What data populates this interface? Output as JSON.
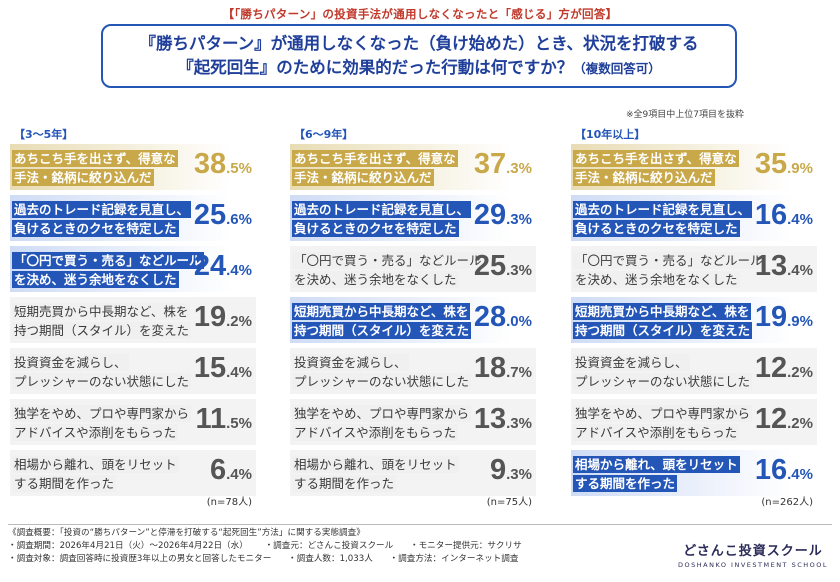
{
  "header": {
    "top_heading": "【「勝ちパターン」の投資手法が通用しなくなったと「感じる」方が回答】",
    "question_line1": "『勝ちパターン』が通用しなくなった（負け始めた）とき、状況を打破する",
    "question_line2_main": "『起死回生』のために効果的だった行動は何ですか？",
    "question_line2_small": "（複数回答可）",
    "note": "※全9項目中上位7項目を抜粋"
  },
  "columns": [
    {
      "title": "【3～5年】",
      "n": "(n=78人)",
      "items": [
        {
          "line1": "あちこち手を出さず、得意な",
          "line2": "手法・銘柄に絞り込んだ",
          "value": "38",
          "decimal": ".5%",
          "style": "gold"
        },
        {
          "line1": "過去のトレード記録を見直し、",
          "line2": "負けるときのクセを特定した",
          "value": "25",
          "decimal": ".6%",
          "style": "blue"
        },
        {
          "line1": "「〇円で買う・売る」などルール",
          "line2": "を決め、迷う余地をなくした",
          "value": "24",
          "decimal": ".4%",
          "style": "blue"
        },
        {
          "line1": "短期売買から中長期など、株を",
          "line2": "持つ期間（スタイル）を変えた",
          "value": "19",
          "decimal": ".2%",
          "style": "gray"
        },
        {
          "line1": "投資資金を減らし、",
          "line2": "プレッシャーのない状態にした",
          "value": "15",
          "decimal": ".4%",
          "style": "gray"
        },
        {
          "line1": "独学をやめ、プロや専門家から",
          "line2": "アドバイスや添削をもらった",
          "value": "11",
          "decimal": ".5%",
          "style": "gray"
        },
        {
          "line1": "相場から離れ、頭をリセット",
          "line2": "する期間を作った",
          "value": "6",
          "decimal": ".4%",
          "style": "gray"
        }
      ]
    },
    {
      "title": "【6～9年】",
      "n": "(n=75人)",
      "items": [
        {
          "line1": "あちこち手を出さず、得意な",
          "line2": "手法・銘柄に絞り込んだ",
          "value": "37",
          "decimal": ".3%",
          "style": "gold"
        },
        {
          "line1": "過去のトレード記録を見直し、",
          "line2": "負けるときのクセを特定した",
          "value": "29",
          "decimal": ".3%",
          "style": "blue"
        },
        {
          "line1": "「〇円で買う・売る」などルール",
          "line2": "を決め、迷う余地をなくした",
          "value": "25",
          "decimal": ".3%",
          "style": "gray"
        },
        {
          "line1": "短期売買から中長期など、株を",
          "line2": "持つ期間（スタイル）を変えた",
          "value": "28",
          "decimal": ".0%",
          "style": "blue"
        },
        {
          "line1": "投資資金を減らし、",
          "line2": "プレッシャーのない状態にした",
          "value": "18",
          "decimal": ".7%",
          "style": "gray"
        },
        {
          "line1": "独学をやめ、プロや専門家から",
          "line2": "アドバイスや添削をもらった",
          "value": "13",
          "decimal": ".3%",
          "style": "gray"
        },
        {
          "line1": "相場から離れ、頭をリセット",
          "line2": "する期間を作った",
          "value": "9",
          "decimal": ".3%",
          "style": "gray"
        }
      ]
    },
    {
      "title": "【10年以上】",
      "n": "(n=262人)",
      "items": [
        {
          "line1": "あちこち手を出さず、得意な",
          "line2": "手法・銘柄に絞り込んだ",
          "value": "35",
          "decimal": ".9%",
          "style": "gold"
        },
        {
          "line1": "過去のトレード記録を見直し、",
          "line2": "負けるときのクセを特定した",
          "value": "16",
          "decimal": ".4%",
          "style": "blue"
        },
        {
          "line1": "「〇円で買う・売る」などルール",
          "line2": "を決め、迷う余地をなくした",
          "value": "13",
          "decimal": ".4%",
          "style": "gray"
        },
        {
          "line1": "短期売買から中長期など、株を",
          "line2": "持つ期間（スタイル）を変えた",
          "value": "19",
          "decimal": ".9%",
          "style": "blue"
        },
        {
          "line1": "投資資金を減らし、",
          "line2": "プレッシャーのない状態にした",
          "value": "12",
          "decimal": ".2%",
          "style": "gray"
        },
        {
          "line1": "独学をやめ、プロや専門家から",
          "line2": "アドバイスや添削をもらった",
          "value": "12",
          "decimal": ".2%",
          "style": "gray"
        },
        {
          "line1": "相場から離れ、頭をリセット",
          "line2": "する期間を作った",
          "value": "16",
          "decimal": ".4%",
          "style": "blue"
        }
      ]
    }
  ],
  "footer": {
    "title": "《調査概要：「投資の“勝ちパターン”と停滞を打破する“起死回生”方法」に関する実態調査》",
    "period": "・調査期間：2026年4月21日（火）～2026年4月22日（水）",
    "organizer": "・調査元：どさんこ投資スクール",
    "monitor": "・モニター提供元：サクリサ",
    "target": "・調査対象：調査回答時に投資歴3年以上の男女と回答したモニター",
    "count": "・調査人数：1,033人",
    "method": "・調査方法：インターネット調査"
  },
  "brand": {
    "name": "どさんこ投資スクール",
    "en": "DOSHANKO INVESTMENT SCHOOL"
  },
  "colors": {
    "gold": "#c9a84a",
    "blue": "#2456b8",
    "heading_red": "#c0392b"
  }
}
